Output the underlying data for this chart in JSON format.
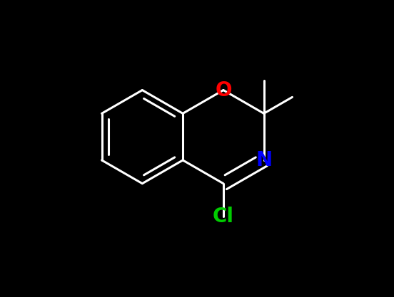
{
  "background_color": "#000000",
  "bond_color": "#ffffff",
  "lw": 2.2,
  "figsize": [
    5.52,
    4.17
  ],
  "dpi": 100,
  "atom_labels": {
    "O": {
      "text": "O",
      "color": "#ff0000",
      "fontsize": 20,
      "ha": "center",
      "va": "center"
    },
    "N": {
      "text": "N",
      "color": "#0000ff",
      "fontsize": 20,
      "ha": "center",
      "va": "center"
    },
    "Cl": {
      "text": "Cl",
      "color": "#00cc00",
      "fontsize": 20,
      "ha": "center",
      "va": "center"
    }
  }
}
